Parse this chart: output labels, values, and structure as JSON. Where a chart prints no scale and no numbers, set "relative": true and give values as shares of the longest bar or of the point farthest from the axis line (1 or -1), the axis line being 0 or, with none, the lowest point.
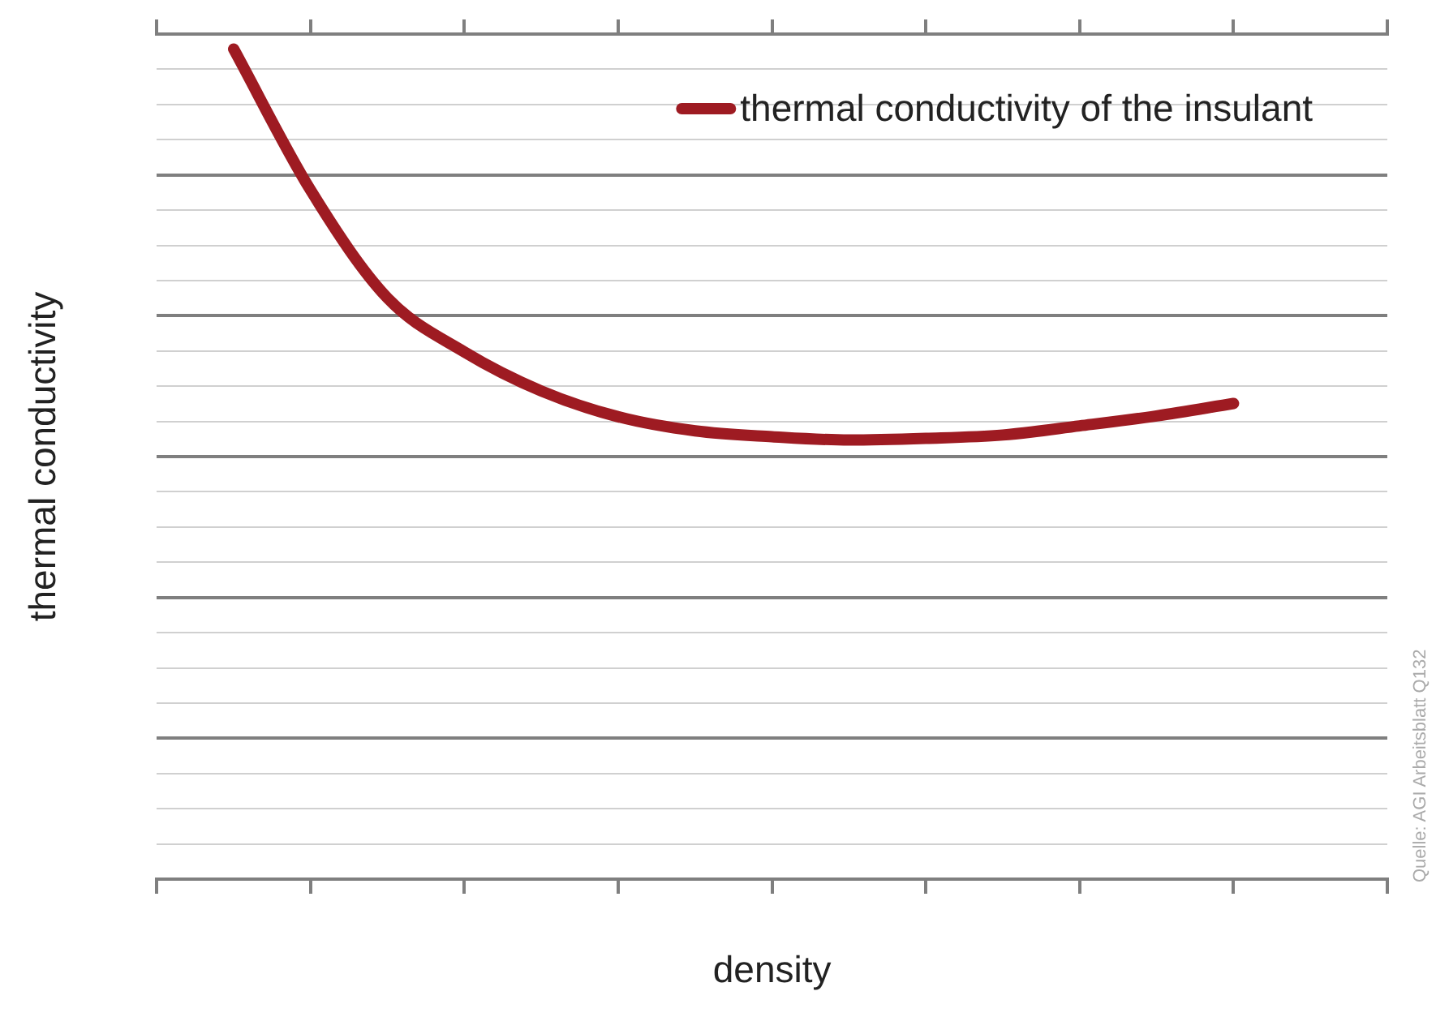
{
  "chart_data": {
    "type": "line",
    "relative": true,
    "xlabel": "density",
    "ylabel": "thermal conductivity",
    "legend": "top right",
    "grid": "y",
    "marker": "none",
    "line_style": "solid",
    "categories": [
      null,
      null,
      null,
      null,
      null,
      null,
      null,
      null,
      null,
      null,
      null,
      null,
      null,
      null,
      null,
      null,
      null
    ],
    "series": [
      {
        "name": "thermal conductivity of the insulant",
        "color": "#9e1b22",
        "values": [
          null,
          1.0,
          0.83,
          0.7,
          0.635,
          0.588,
          0.557,
          0.54,
          0.533,
          0.529,
          0.531,
          0.535,
          0.546,
          0.558,
          0.573,
          null,
          null
        ]
      }
    ],
    "annotations": [
      "Quelle: AGI Arbeitsblatt Q132"
    ]
  }
}
